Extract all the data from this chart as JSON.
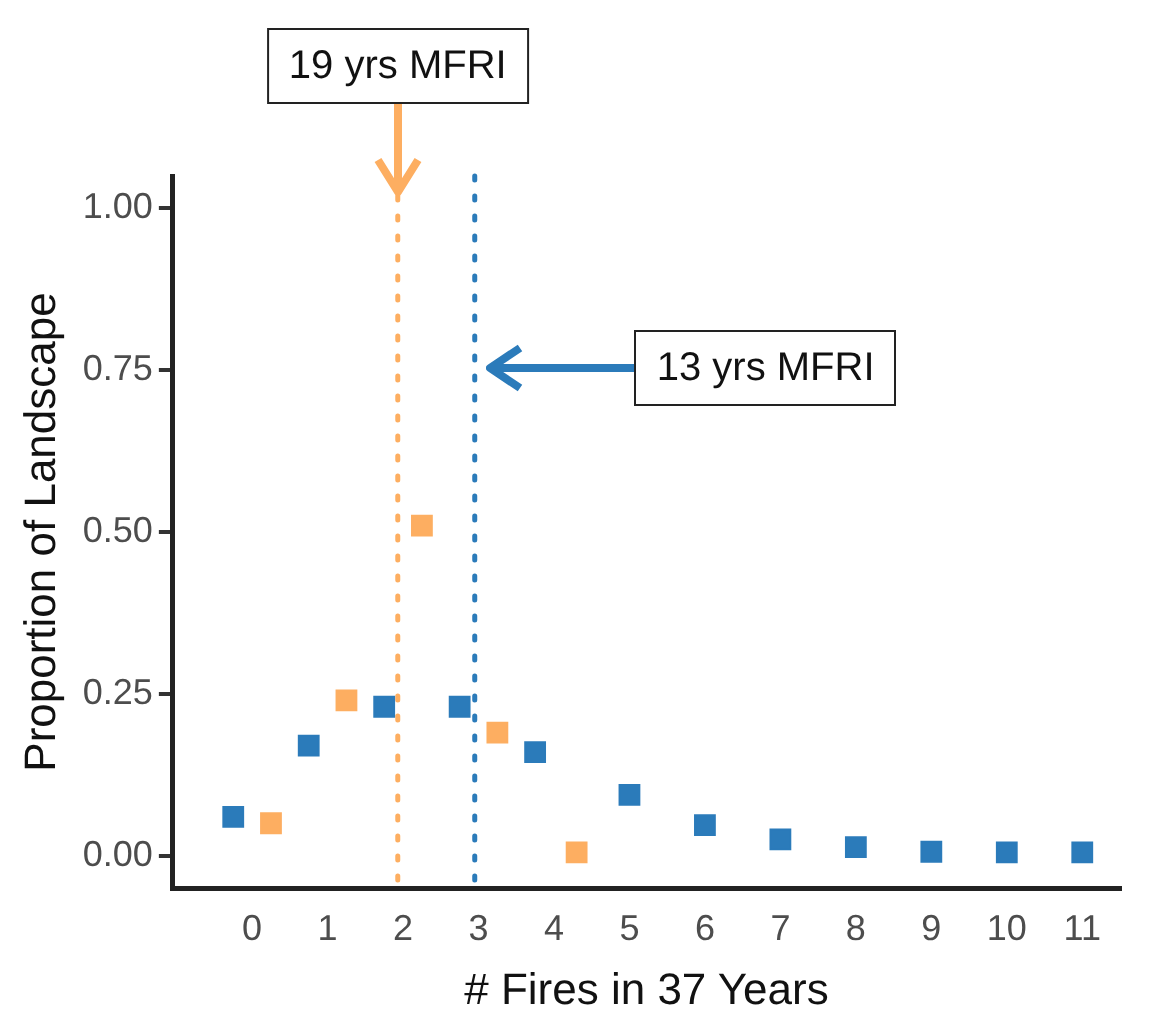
{
  "chart_data": {
    "type": "scatter",
    "xlabel": "# Fires in 37 Years",
    "ylabel": "Proportion of Landscape",
    "series": [
      {
        "color": "#2b7bba",
        "x": [
          -0.25,
          0.75,
          1.75,
          2.75,
          3.75,
          5,
          6,
          7,
          8,
          9,
          10,
          11
        ],
        "values": [
          0.06,
          0.17,
          0.23,
          0.23,
          0.16,
          0.094,
          0.047,
          0.025,
          0.013,
          0.006,
          0.005,
          0.005
        ]
      },
      {
        "color": "#fdae61",
        "x": [
          0.25,
          1.25,
          2.25,
          3.25,
          4.3
        ],
        "values": [
          0.05,
          0.24,
          0.51,
          0.19,
          0.005
        ]
      }
    ],
    "xlim": [
      -1.05,
      11.5
    ],
    "xticks": [
      0,
      1,
      2,
      3,
      4,
      5,
      6,
      7,
      8,
      9,
      10,
      11
    ],
    "ylim": [
      -0.05,
      1.05
    ],
    "yticks": [
      {
        "value": 0,
        "label": "0.00"
      },
      0.25,
      {
        "value": 0.5,
        "label": "0.50"
      },
      0.75,
      {
        "value": 1,
        "label": "1.00"
      }
    ],
    "ref_lines": [
      {
        "axis": "x",
        "value": 1.93,
        "label": "19 yrs MFRI",
        "color": "#fdae61",
        "line_style": "dotted"
      },
      {
        "axis": "x",
        "value": 2.95,
        "label": "13 yrs MFRI",
        "color": "#2b7bba",
        "line_style": "dotted"
      }
    ],
    "marker": "square",
    "grid": false,
    "legend": false
  }
}
